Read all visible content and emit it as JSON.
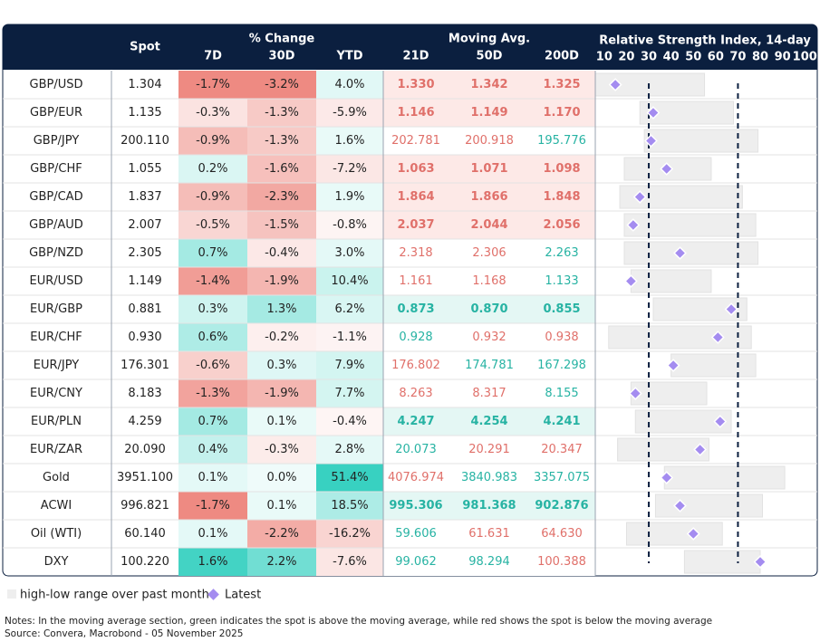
{
  "header": {
    "spot": "Spot",
    "change_group": "% Change",
    "ma_group": "Moving Avg.",
    "rsi_title": "Relative Strength Index, 14-day",
    "columns": [
      "7D",
      "30D",
      "YTD",
      "21D",
      "50D",
      "200D"
    ]
  },
  "rows": [
    {
      "pair": "GBP/USD",
      "spot": "1.304",
      "change": [
        "-1.7%",
        "-3.2%",
        "4.0%"
      ],
      "ma": [
        "1.330",
        "1.342",
        "1.325"
      ],
      "rsi_low": 6,
      "rsi_high": 55,
      "rsi_latest": 15
    },
    {
      "pair": "GBP/EUR",
      "spot": "1.135",
      "change": [
        "-0.3%",
        "-1.3%",
        "-5.9%"
      ],
      "ma": [
        "1.146",
        "1.149",
        "1.170"
      ],
      "rsi_low": 26,
      "rsi_high": 68,
      "rsi_latest": 32
    },
    {
      "pair": "GBP/JPY",
      "spot": "200.110",
      "change": [
        "-0.9%",
        "-1.3%",
        "1.6%"
      ],
      "ma": [
        "202.781",
        "200.918",
        "195.776"
      ],
      "rsi_low": 28,
      "rsi_high": 79,
      "rsi_latest": 31
    },
    {
      "pair": "GBP/CHF",
      "spot": "1.055",
      "change": [
        "0.2%",
        "-1.6%",
        "-7.2%"
      ],
      "ma": [
        "1.063",
        "1.071",
        "1.098"
      ],
      "rsi_low": 19,
      "rsi_high": 58,
      "rsi_latest": 38
    },
    {
      "pair": "GBP/CAD",
      "spot": "1.837",
      "change": [
        "-0.9%",
        "-2.3%",
        "1.9%"
      ],
      "ma": [
        "1.864",
        "1.866",
        "1.848"
      ],
      "rsi_low": 17,
      "rsi_high": 72,
      "rsi_latest": 26
    },
    {
      "pair": "GBP/AUD",
      "spot": "2.007",
      "change": [
        "-0.5%",
        "-1.5%",
        "-0.8%"
      ],
      "ma": [
        "2.037",
        "2.044",
        "2.056"
      ],
      "rsi_low": 19,
      "rsi_high": 78,
      "rsi_latest": 23
    },
    {
      "pair": "GBP/NZD",
      "spot": "2.305",
      "change": [
        "0.7%",
        "-0.4%",
        "3.0%"
      ],
      "ma": [
        "2.318",
        "2.306",
        "2.263"
      ],
      "rsi_low": 19,
      "rsi_high": 79,
      "rsi_latest": 44
    },
    {
      "pair": "EUR/USD",
      "spot": "1.149",
      "change": [
        "-1.4%",
        "-1.9%",
        "10.4%"
      ],
      "ma": [
        "1.161",
        "1.168",
        "1.133"
      ],
      "rsi_low": 22,
      "rsi_high": 58,
      "rsi_latest": 22
    },
    {
      "pair": "EUR/GBP",
      "spot": "0.881",
      "change": [
        "0.3%",
        "1.3%",
        "6.2%"
      ],
      "ma": [
        "0.873",
        "0.870",
        "0.855"
      ],
      "rsi_low": 32,
      "rsi_high": 74,
      "rsi_latest": 67
    },
    {
      "pair": "EUR/CHF",
      "spot": "0.930",
      "change": [
        "0.6%",
        "-0.2%",
        "-1.1%"
      ],
      "ma": [
        "0.928",
        "0.932",
        "0.938"
      ],
      "rsi_low": 12,
      "rsi_high": 76,
      "rsi_latest": 61
    },
    {
      "pair": "EUR/JPY",
      "spot": "176.301",
      "change": [
        "-0.6%",
        "0.3%",
        "7.9%"
      ],
      "ma": [
        "176.802",
        "174.781",
        "167.298"
      ],
      "rsi_low": 40,
      "rsi_high": 78,
      "rsi_latest": 41
    },
    {
      "pair": "EUR/CNY",
      "spot": "8.183",
      "change": [
        "-1.3%",
        "-1.9%",
        "7.7%"
      ],
      "ma": [
        "8.263",
        "8.317",
        "8.155"
      ],
      "rsi_low": 22,
      "rsi_high": 56,
      "rsi_latest": 24
    },
    {
      "pair": "EUR/PLN",
      "spot": "4.259",
      "change": [
        "0.7%",
        "0.1%",
        "-0.4%"
      ],
      "ma": [
        "4.247",
        "4.254",
        "4.241"
      ],
      "rsi_low": 24,
      "rsi_high": 67,
      "rsi_latest": 62
    },
    {
      "pair": "EUR/ZAR",
      "spot": "20.090",
      "change": [
        "0.4%",
        "-0.3%",
        "2.8%"
      ],
      "ma": [
        "20.073",
        "20.291",
        "20.347"
      ],
      "rsi_low": 16,
      "rsi_high": 57,
      "rsi_latest": 53
    },
    {
      "pair": "Gold",
      "spot": "3951.100",
      "change": [
        "0.1%",
        "0.0%",
        "51.4%"
      ],
      "ma": [
        "4076.974",
        "3840.983",
        "3357.075"
      ],
      "rsi_low": 37,
      "rsi_high": 91,
      "rsi_latest": 38
    },
    {
      "pair": "ACWI",
      "spot": "996.821",
      "change": [
        "-1.7%",
        "0.1%",
        "18.5%"
      ],
      "ma": [
        "995.306",
        "981.368",
        "902.876"
      ],
      "rsi_low": 33,
      "rsi_high": 81,
      "rsi_latest": 44
    },
    {
      "pair": "Oil (WTI)",
      "spot": "60.140",
      "change": [
        "0.1%",
        "-2.2%",
        "-16.2%"
      ],
      "ma": [
        "59.606",
        "61.631",
        "64.630"
      ],
      "rsi_low": 20,
      "rsi_high": 63,
      "rsi_latest": 50
    },
    {
      "pair": "DXY",
      "spot": "100.220",
      "change": [
        "1.6%",
        "2.2%",
        "-7.6%"
      ],
      "ma": [
        "99.062",
        "98.294",
        "100.388"
      ],
      "rsi_low": 46,
      "rsi_high": 80,
      "rsi_latest": 80
    }
  ],
  "rsi_axis": {
    "xlim": [
      6,
      106
    ],
    "xticks": [
      10,
      20,
      30,
      40,
      50,
      60,
      70,
      80,
      90,
      100
    ],
    "reference_lines": [
      30,
      70
    ],
    "range_color": "#eeeeee",
    "latest_color": "#a48cf0"
  },
  "legend": [
    "high-low range over past month",
    "Latest"
  ],
  "notes": "Notes: In the moving average section, green indicates the spot is above the moving average, while red shows the spot is below the moving average",
  "source": "Source: Convera, Macrobond - 05 November 2025"
}
